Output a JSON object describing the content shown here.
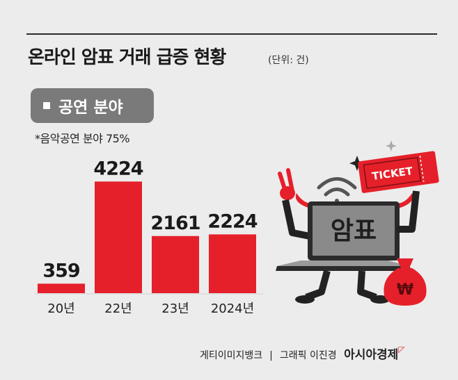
{
  "title": "온라인 암표 거래 급증 현황",
  "unit": "(단위: 건)",
  "category_pill": "공연 분야",
  "note": "*음악공연 분야 75%",
  "illustration": {
    "ticket_text": "TICKET",
    "laptop_text": "암표",
    "bag_symbol": "₩"
  },
  "footer": {
    "credit_photo": "게티이미지뱅크",
    "separator": "|",
    "credit_graphic": "그래픽 이진경",
    "brand": "아시아경제",
    "brand_mark": "ㅁ"
  },
  "colors": {
    "bar": "#e5202a",
    "background": "#ececec"
  },
  "chart_data": {
    "type": "bar",
    "title": "온라인 암표 거래 급증 현황",
    "categories": [
      "20년",
      "22년",
      "23년",
      "2024년"
    ],
    "values": [
      359,
      4224,
      2161,
      2224
    ],
    "value_labels": [
      "359",
      "4224",
      "2161",
      "2224"
    ],
    "ylim": [
      0,
      4600
    ],
    "grid": false,
    "xlabel": "",
    "ylabel": ""
  }
}
